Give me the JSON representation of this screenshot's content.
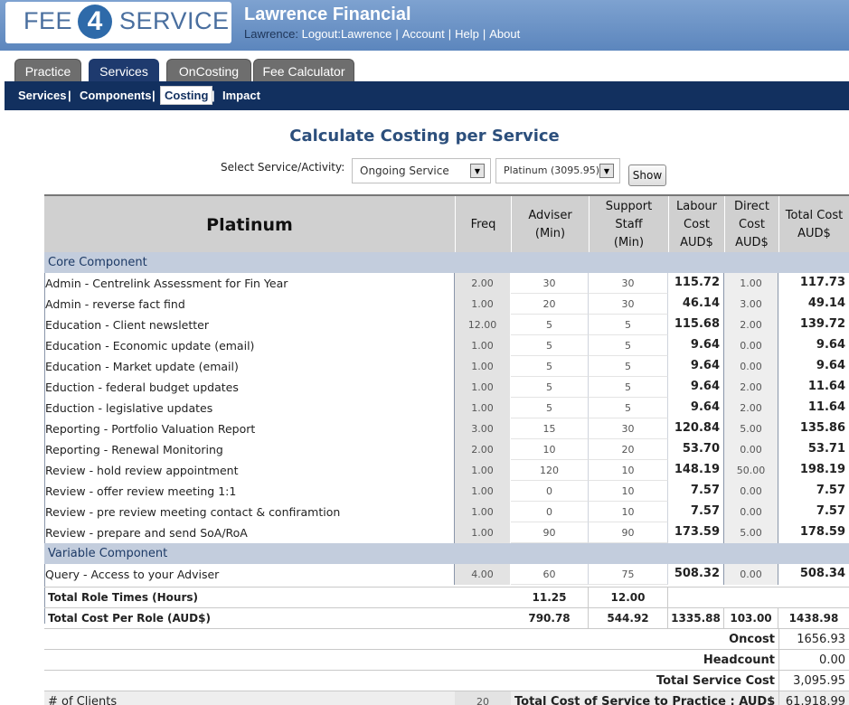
{
  "header": {
    "logo": {
      "left": "FEE",
      "digit": "4",
      "right": "SERVICE"
    },
    "firm": "Lawrence Financial",
    "user_prefix": "Lawrence:",
    "links": [
      "Logout:Lawrence",
      "Account",
      "Help",
      "About"
    ]
  },
  "tabs": [
    {
      "label": "Practice",
      "active": false
    },
    {
      "label": "Services",
      "active": true
    },
    {
      "label": "OnCosting",
      "active": false
    },
    {
      "label": "Fee Calculator",
      "active": false
    }
  ],
  "subnav": {
    "items": [
      "Services",
      "Components",
      "Costing",
      "Impact"
    ],
    "active": "Costing"
  },
  "page": {
    "title": "Calculate Costing per Service",
    "select_label": "Select Service/Activity:",
    "service_select": "Ongoing Service",
    "package_select": "Platinum (3095.95)",
    "show_button": "Show"
  },
  "table": {
    "package": "Platinum",
    "columns": {
      "freq": "Freq",
      "adviser": [
        "Adviser",
        "(Min)"
      ],
      "support": [
        "Support",
        "Staff",
        "(Min)"
      ],
      "labour": [
        "Labour",
        "Cost",
        "AUD$"
      ],
      "direct": [
        "Direct",
        "Cost",
        "AUD$"
      ],
      "total": [
        "Total Cost",
        "AUD$"
      ]
    },
    "sections": [
      {
        "title": "Core Component",
        "rows": [
          {
            "name": "Admin - Centrelink Assessment for Fin Year",
            "freq": "2.00",
            "adviser": "30",
            "support": "30",
            "labour": "115.72",
            "direct": "1.00",
            "total": "117.73"
          },
          {
            "name": "Admin - reverse fact find",
            "freq": "1.00",
            "adviser": "20",
            "support": "30",
            "labour": "46.14",
            "direct": "3.00",
            "total": "49.14"
          },
          {
            "name": "Education - Client newsletter",
            "freq": "12.00",
            "adviser": "5",
            "support": "5",
            "labour": "115.68",
            "direct": "2.00",
            "total": "139.72"
          },
          {
            "name": "Education - Economic update (email)",
            "freq": "1.00",
            "adviser": "5",
            "support": "5",
            "labour": "9.64",
            "direct": "0.00",
            "total": "9.64"
          },
          {
            "name": "Education - Market update (email)",
            "freq": "1.00",
            "adviser": "5",
            "support": "5",
            "labour": "9.64",
            "direct": "0.00",
            "total": "9.64"
          },
          {
            "name": "Eduction - federal budget updates",
            "freq": "1.00",
            "adviser": "5",
            "support": "5",
            "labour": "9.64",
            "direct": "2.00",
            "total": "11.64"
          },
          {
            "name": "Eduction - legislative updates",
            "freq": "1.00",
            "adviser": "5",
            "support": "5",
            "labour": "9.64",
            "direct": "2.00",
            "total": "11.64"
          },
          {
            "name": "Reporting - Portfolio Valuation Report",
            "freq": "3.00",
            "adviser": "15",
            "support": "30",
            "labour": "120.84",
            "direct": "5.00",
            "total": "135.86"
          },
          {
            "name": "Reporting - Renewal Monitoring",
            "freq": "2.00",
            "adviser": "10",
            "support": "20",
            "labour": "53.70",
            "direct": "0.00",
            "total": "53.71"
          },
          {
            "name": "Review - hold review appointment",
            "freq": "1.00",
            "adviser": "120",
            "support": "10",
            "labour": "148.19",
            "direct": "50.00",
            "total": "198.19"
          },
          {
            "name": "Review - offer review meeting 1:1",
            "freq": "1.00",
            "adviser": "0",
            "support": "10",
            "labour": "7.57",
            "direct": "0.00",
            "total": "7.57"
          },
          {
            "name": "Review - pre review meeting contact & confiramtion",
            "freq": "1.00",
            "adviser": "0",
            "support": "10",
            "labour": "7.57",
            "direct": "0.00",
            "total": "7.57"
          },
          {
            "name": "Review - prepare and send SoA/RoA",
            "freq": "1.00",
            "adviser": "90",
            "support": "90",
            "labour": "173.59",
            "direct": "5.00",
            "total": "178.59"
          }
        ]
      },
      {
        "title": "Variable Component",
        "rows": [
          {
            "name": "Query - Access to your Adviser",
            "freq": "4.00",
            "adviser": "60",
            "support": "75",
            "labour": "508.32",
            "direct": "0.00",
            "total": "508.34"
          }
        ]
      }
    ],
    "role_times": {
      "label": "Total Role Times (Hours)",
      "adviser": "11.25",
      "support": "12.00"
    },
    "role_costs": {
      "label": "Total Cost Per Role (AUD$)",
      "adviser": "790.78",
      "support": "544.92",
      "labour": "1335.88",
      "direct": "103.00",
      "total": "1438.98"
    },
    "totals": [
      {
        "label": "Oncost",
        "value": "1656.93"
      },
      {
        "label": "Headcount",
        "value": "0.00"
      },
      {
        "label": "Total Service Cost",
        "value": "3,095.95"
      }
    ],
    "clients": {
      "label": "# of Clients",
      "value": "20",
      "practice_label": "Total Cost of Service to Practice : AUD$",
      "practice_value": "61,918.99"
    }
  }
}
